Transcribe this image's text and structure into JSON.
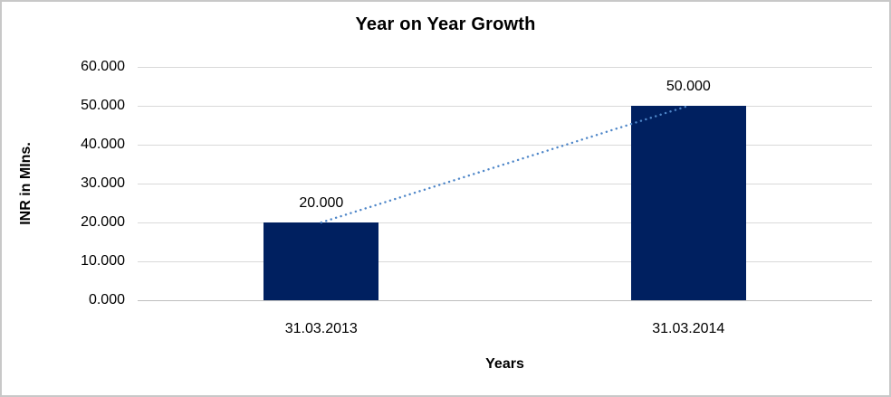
{
  "chart_data": {
    "type": "bar",
    "title": "Year on Year Growth",
    "xlabel": "Years",
    "ylabel": "INR in MIns.",
    "categories": [
      "31.03.2013",
      "31.03.2014"
    ],
    "values": [
      20.0,
      50.0
    ],
    "data_labels": [
      "20.000",
      "50.000"
    ],
    "y_ticks": [
      {
        "value": 60,
        "label": "60.000"
      },
      {
        "value": 50,
        "label": "50.000"
      },
      {
        "value": 40,
        "label": "40.000"
      },
      {
        "value": 30,
        "label": "30.000"
      },
      {
        "value": 20,
        "label": "20.000"
      },
      {
        "value": 10,
        "label": "10.000"
      },
      {
        "value": 0,
        "label": "0.000"
      }
    ],
    "ylim": [
      0,
      60
    ],
    "grid": true,
    "legend": false,
    "trendline": {
      "style": "dotted",
      "from_category_index": 0,
      "from_value": 20.0,
      "to_category_index": 1,
      "to_value": 50.0
    },
    "colors": {
      "bar": "#002060",
      "trendline": "#4e86c8",
      "gridline": "#d9d9d9",
      "axis_line": "#bfbfbf",
      "text": "#000000",
      "border": "#c8c8c8",
      "background": "#ffffff"
    }
  }
}
